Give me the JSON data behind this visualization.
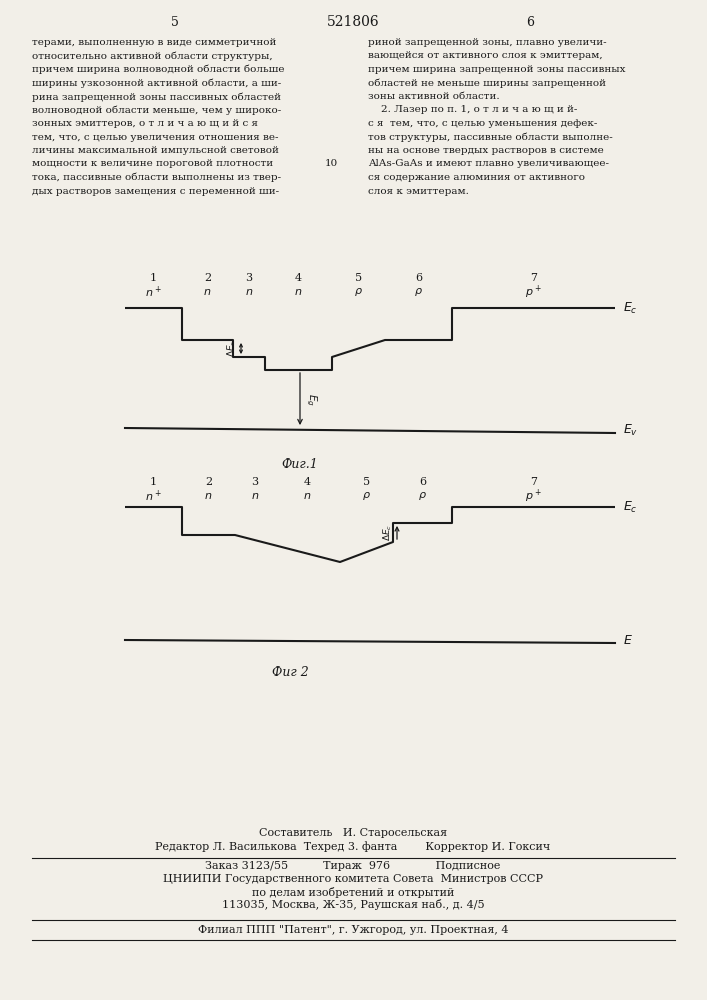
{
  "title": "521806",
  "page_left": "5",
  "page_right": "6",
  "bg_color": "#f2efe8",
  "line_color": "#1a1a1a",
  "text_col1": [
    "терами, выполненную в виде симметричной",
    "относительно активной области структуры,",
    "причем ширина волноводной области больше",
    "ширины узкозонной активной области, а ши-",
    "рина запрещенной зоны пассивных областей",
    "волноводной области меньше, чем у широко-",
    "зонных эмиттеров, о т л и ч а ю щ и й с я",
    "тем, что, с целью увеличения отношения ве-",
    "личины максимальной импульсной световой",
    "мощности к величине пороговой плотности",
    "тока, пассивные области выполнены из твер-",
    "дых растворов замещения с переменной ши-"
  ],
  "line_number_10": "10",
  "text_col2": [
    "риной запрещенной зоны, плавно увеличи-",
    "вающейся от активного слоя к эмиттерам,",
    "причем ширина запрещенной зоны пассивных",
    "областей не меньше ширины запрещенной",
    "зоны активной области.",
    "    2. Лазер по п. 1, о т л и ч а ю щ и й-",
    "с я  тем, что, с целью уменьшения дефек-",
    "тов структуры, пассивные области выполне-",
    "ны на основе твердых растворов в системе",
    "AlAs-GaAs и имеют плавно увеличивающее-",
    "ся содержание алюминия от активного",
    "слоя к эмиттерам."
  ],
  "fig1_caption": "Фиг.1",
  "fig2_caption": "Фиг 2",
  "footer_lines": [
    "Составитель   И. Старосельская",
    "Редактор Л. Василькова  Техред 3. фанта        Корректор И. Гоксич",
    "Заказ 3123/55          Тираж  976             Подписное",
    "ЦНИИПИ Государственного комитета Совета  Министров СССР",
    "по делам изобретений и открытий",
    "113035, Москва, Ж-35, Раушская наб., д. 4/5",
    "Филиал ППП \"Патент\", г. Ужгород, ул. Проектная, 4"
  ],
  "region_nums": [
    "1",
    "2",
    "3",
    "4",
    "5",
    "6",
    "7"
  ],
  "region_doping1": [
    "n+",
    "n",
    "n",
    "n",
    "p",
    "p",
    "p+"
  ],
  "region_doping2": [
    "n+",
    "n",
    "n",
    "n",
    "p",
    "p",
    "p+"
  ]
}
